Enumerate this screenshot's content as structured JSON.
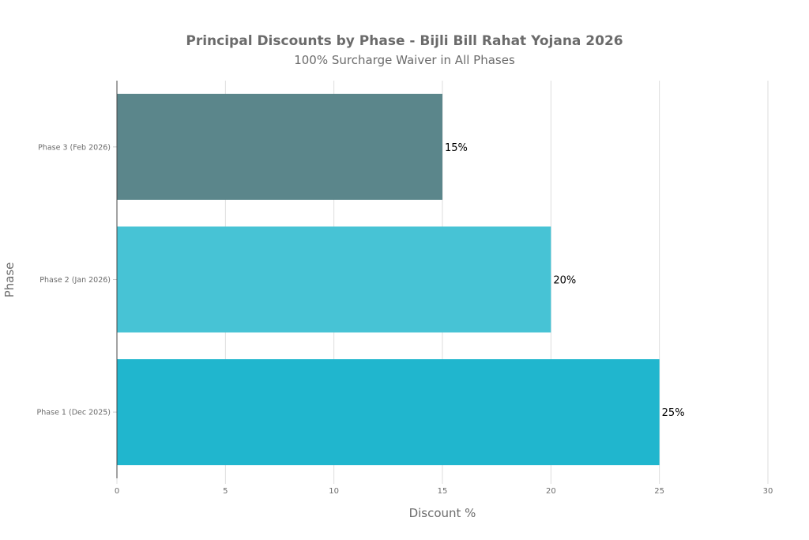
{
  "chart_data": {
    "type": "bar",
    "orientation": "horizontal",
    "title": "Principal Discounts by Phase - Bijli Bill Rahat Yojana 2026",
    "subtitle": "100% Surcharge Waiver in All Phases",
    "xlabel": "Discount %",
    "ylabel": "Phase",
    "xlim": [
      0,
      30
    ],
    "xticks": [
      0,
      5,
      10,
      15,
      20,
      25,
      30
    ],
    "grid": "vertical",
    "categories": [
      "Phase 1 (Dec 2025)",
      "Phase 2 (Jan 2026)",
      "Phase 3 (Feb 2026)"
    ],
    "values": [
      25,
      20,
      15
    ],
    "data_labels": [
      "25%",
      "20%",
      "15%"
    ],
    "colors": [
      "#20b6ce",
      "#47c3d5",
      "#5b868b"
    ]
  }
}
